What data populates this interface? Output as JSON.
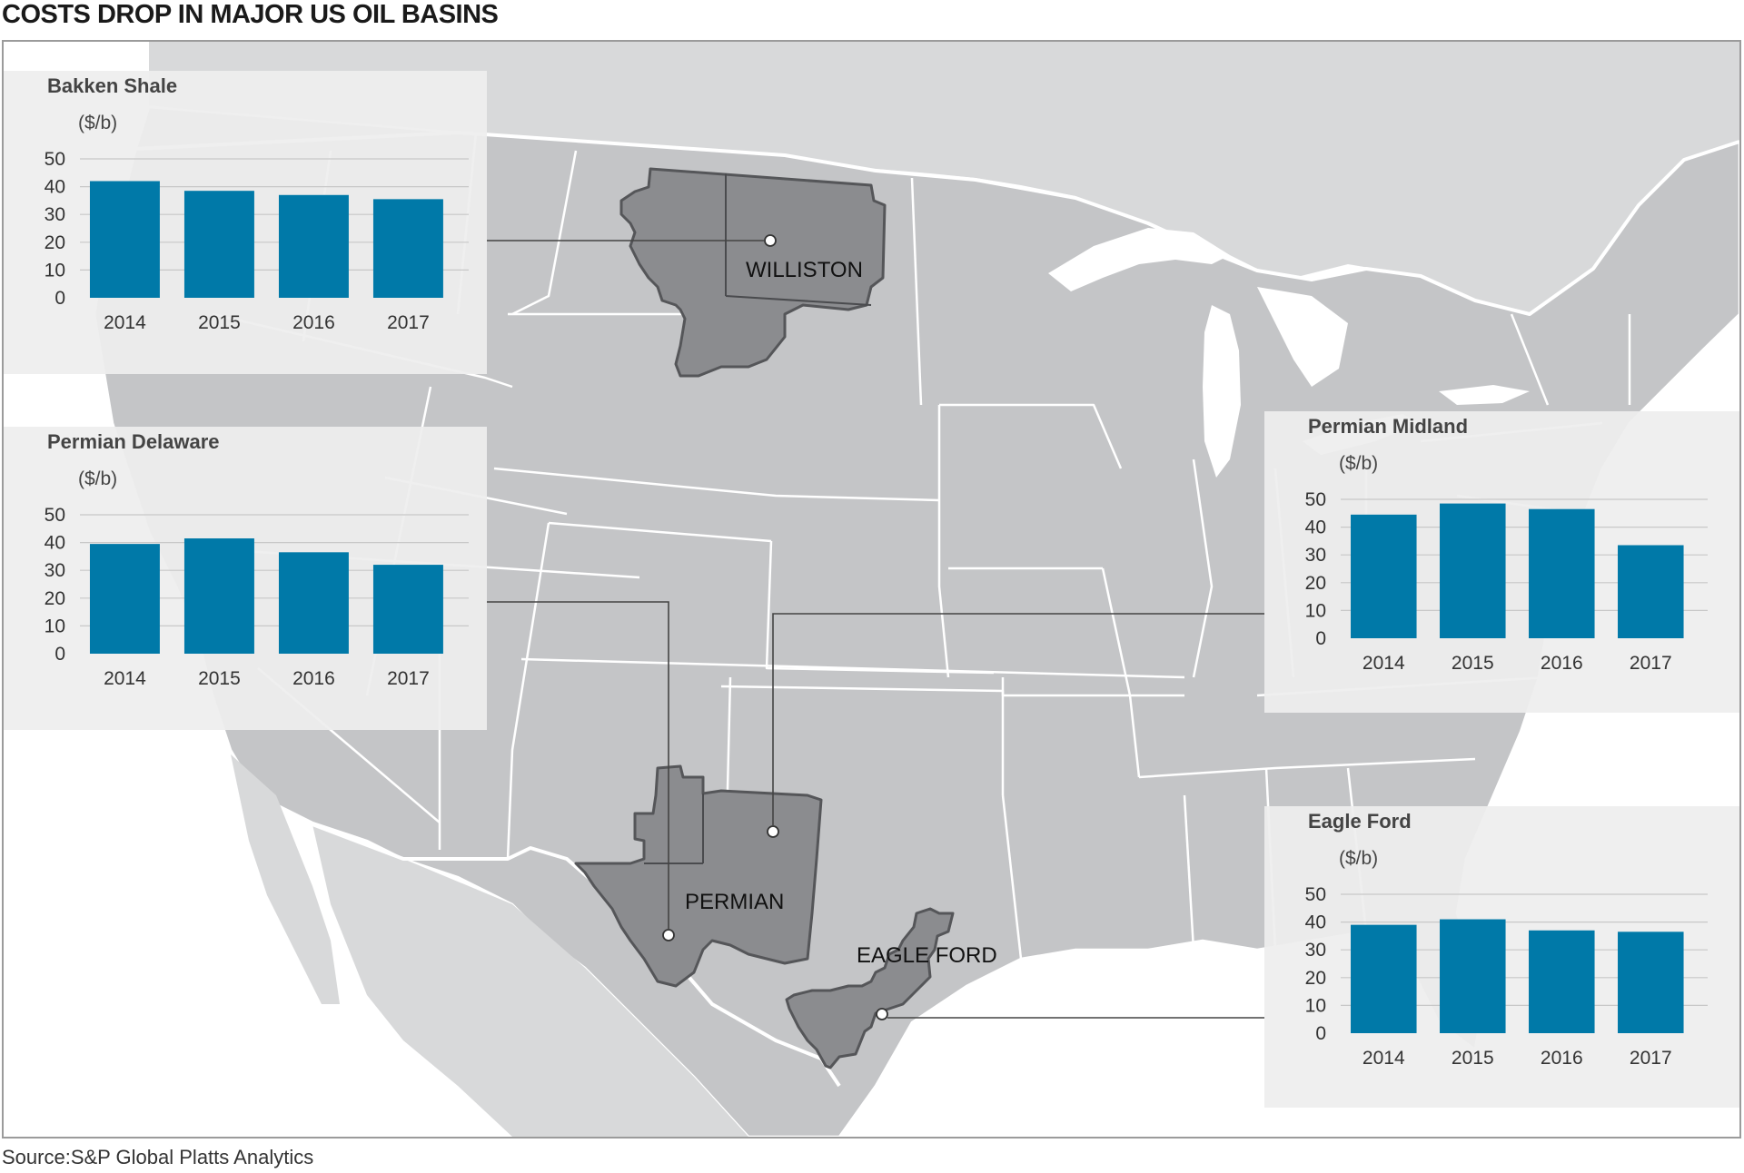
{
  "title": "COSTS DROP IN MAJOR US OIL BASINS",
  "source": "Source:S&P Global Platts Analytics",
  "colors": {
    "bar": "#0079a8",
    "land": "#c4c5c7",
    "basin": "#8b8c8f",
    "water": "#ffffff"
  },
  "basins": [
    {
      "name": "WILLISTON"
    },
    {
      "name": "PERMIAN"
    },
    {
      "name": "EAGLE FORD"
    }
  ],
  "chart_data": [
    {
      "type": "bar",
      "title": "Bakken Shale",
      "ylabel": "($/b)",
      "ylim": [
        0,
        50
      ],
      "yticks": [
        "0",
        "10",
        "20",
        "30",
        "40",
        "50"
      ],
      "categories": [
        "2014",
        "2015",
        "2016",
        "2017"
      ],
      "values": [
        42,
        38.5,
        37,
        35.5
      ]
    },
    {
      "type": "bar",
      "title": "Permian Delaware",
      "ylabel": "($/b)",
      "ylim": [
        0,
        50
      ],
      "yticks": [
        "0",
        "10",
        "20",
        "30",
        "40",
        "50"
      ],
      "categories": [
        "2014",
        "2015",
        "2016",
        "2017"
      ],
      "values": [
        39.5,
        41.5,
        36.5,
        32
      ]
    },
    {
      "type": "bar",
      "title": "Permian Midland",
      "ylabel": "($/b)",
      "ylim": [
        0,
        50
      ],
      "yticks": [
        "0",
        "10",
        "20",
        "30",
        "40",
        "50"
      ],
      "categories": [
        "2014",
        "2015",
        "2016",
        "2017"
      ],
      "values": [
        44.5,
        48.5,
        46.5,
        33.5
      ]
    },
    {
      "type": "bar",
      "title": "Eagle Ford",
      "ylabel": "($/b)",
      "ylim": [
        0,
        50
      ],
      "yticks": [
        "0",
        "10",
        "20",
        "30",
        "40",
        "50"
      ],
      "categories": [
        "2014",
        "2015",
        "2016",
        "2017"
      ],
      "values": [
        39,
        41,
        37,
        36.5
      ]
    }
  ]
}
